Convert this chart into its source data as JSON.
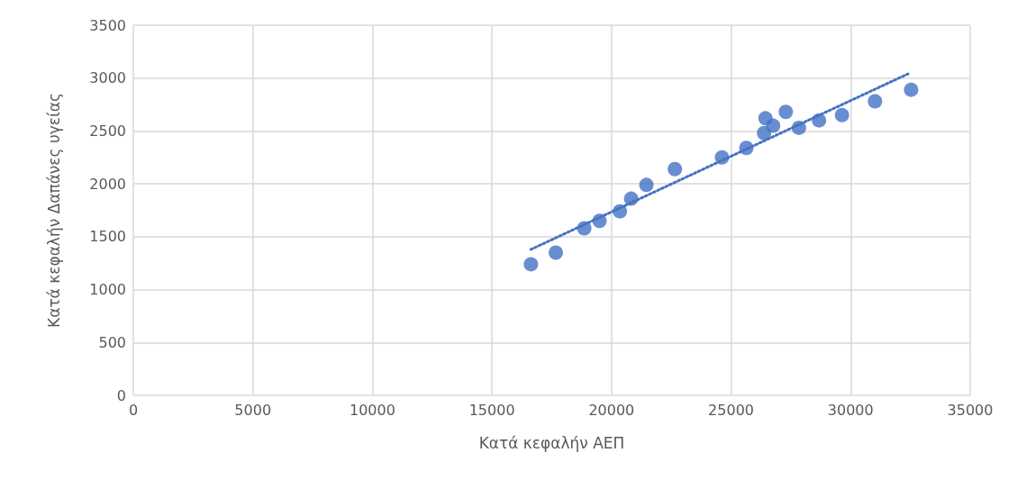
{
  "chart_data": {
    "type": "scatter",
    "xlabel": "Κατά κεφαλήν ΑΕΠ",
    "ylabel": "Κατά κεφαλήν Δαπάνες υγείας",
    "xlim": [
      0,
      35000
    ],
    "xticks": [
      0,
      5000,
      10000,
      15000,
      20000,
      25000,
      30000,
      35000
    ],
    "ylim": [
      0,
      3500
    ],
    "yticks": [
      0,
      500,
      1000,
      1500,
      2000,
      2500,
      3000,
      3500
    ],
    "grid": true,
    "marker": "circle",
    "series": [
      {
        "color": "#4472c4",
        "x": [
          16630,
          17670,
          18860,
          19500,
          20350,
          20820,
          21460,
          22650,
          24620,
          25640,
          26440,
          26380,
          26760,
          27290,
          27840,
          28680,
          29640,
          31020,
          32530
        ],
        "values": [
          1240,
          1350,
          1580,
          1650,
          1740,
          1860,
          1990,
          2140,
          2250,
          2340,
          2620,
          2480,
          2550,
          2680,
          2530,
          2600,
          2650,
          2780,
          2890
        ]
      },
      {
        "type": "line",
        "color": "#4472c4",
        "marker": "none",
        "line_style": "dotted",
        "x": [
          16630,
          32400
        ],
        "values": [
          1380,
          3040
        ]
      }
    ]
  }
}
